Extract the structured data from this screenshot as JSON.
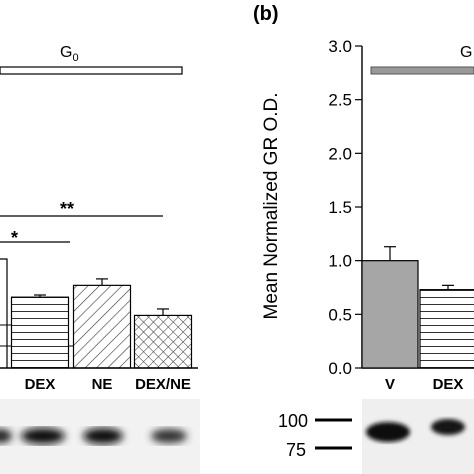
{
  "panel_b_label": "(b)",
  "chart_data": [
    {
      "type": "bar",
      "panel": "a (partial)",
      "bracket_label": "G0",
      "categories": [
        "DEX",
        "NE",
        "DEX/NE"
      ],
      "values": [
        0.66,
        0.77,
        0.49
      ],
      "errors": [
        0.02,
        0.06,
        0.06
      ],
      "fills": [
        "horizontal-lines",
        "diagonal-lines",
        "crosshatch"
      ],
      "significance": [
        {
          "label": "*",
          "level": 1.3
        },
        {
          "label": "**",
          "level": 1.48
        }
      ],
      "ylim": [
        0,
        3.0
      ],
      "blot": {
        "bands": 4
      }
    },
    {
      "type": "bar",
      "panel": "b",
      "bracket_label": "G",
      "ylabel": "Mean Normalized GR O.D.",
      "categories": [
        "V",
        "DEX"
      ],
      "values": [
        1.0,
        0.73
      ],
      "errors": [
        0.13,
        0.04
      ],
      "fills": [
        "gray",
        "horizontal-lines"
      ],
      "yticks": [
        "0.0",
        "0.5",
        "1.0",
        "1.5",
        "2.0",
        "2.5",
        "3.0"
      ],
      "ylim": [
        0,
        3.0
      ],
      "blot": {
        "markers": [
          "100",
          "75"
        ],
        "bands": 2
      }
    }
  ],
  "colors": {
    "bar_gray": "#a6a6a6",
    "bracket_gray": "#999999",
    "axis": "#000000"
  }
}
